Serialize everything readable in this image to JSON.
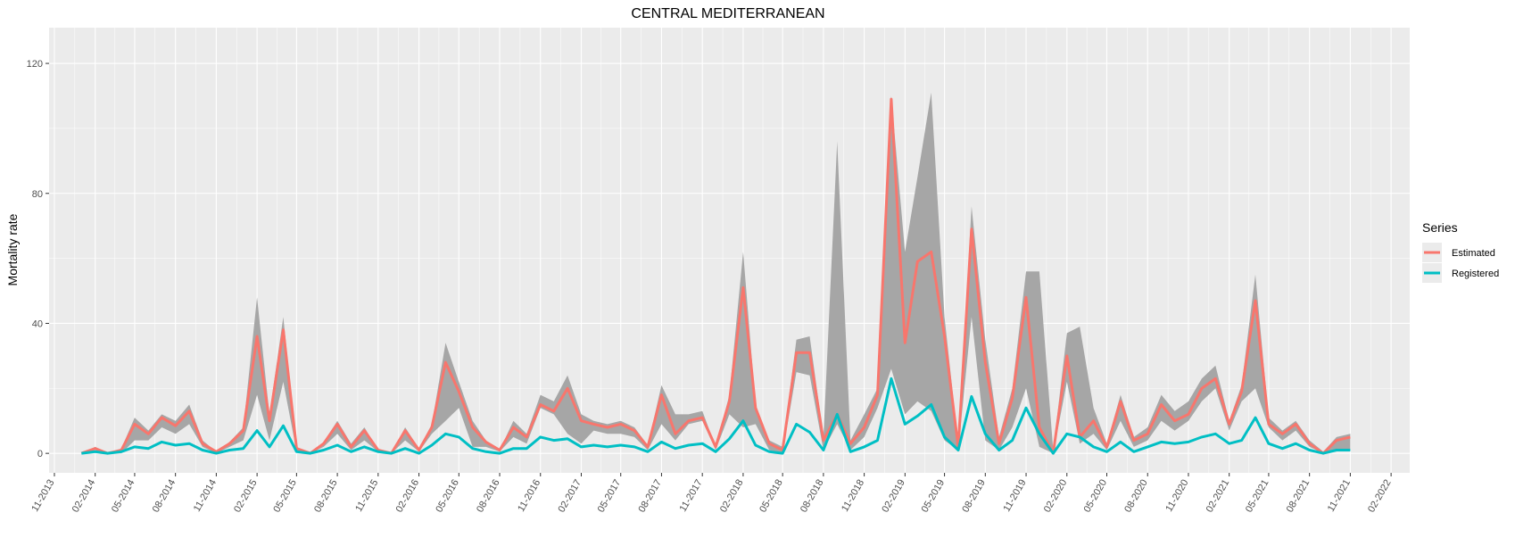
{
  "chart_data": {
    "type": "line",
    "title": "CENTRAL MEDITERRANEAN",
    "xlabel": "",
    "ylabel": "Mortality rate",
    "ylim": [
      -6,
      131
    ],
    "yticks": [
      0,
      40,
      80,
      120
    ],
    "xlim": [
      "2013-10-20",
      "2022-03-15"
    ],
    "xticks": [
      {
        "date": "2013-11-01",
        "label": "11-2013"
      },
      {
        "date": "2014-02-01",
        "label": "02-2014"
      },
      {
        "date": "2014-05-01",
        "label": "05-2014"
      },
      {
        "date": "2014-08-01",
        "label": "08-2014"
      },
      {
        "date": "2014-11-01",
        "label": "11-2014"
      },
      {
        "date": "2015-02-01",
        "label": "02-2015"
      },
      {
        "date": "2015-05-01",
        "label": "05-2015"
      },
      {
        "date": "2015-08-01",
        "label": "08-2015"
      },
      {
        "date": "2015-11-01",
        "label": "11-2015"
      },
      {
        "date": "2016-02-01",
        "label": "02-2016"
      },
      {
        "date": "2016-05-01",
        "label": "05-2016"
      },
      {
        "date": "2016-08-01",
        "label": "08-2016"
      },
      {
        "date": "2016-11-01",
        "label": "11-2016"
      },
      {
        "date": "2017-02-01",
        "label": "02-2017"
      },
      {
        "date": "2017-05-01",
        "label": "05-2017"
      },
      {
        "date": "2017-08-01",
        "label": "08-2017"
      },
      {
        "date": "2017-11-01",
        "label": "11-2017"
      },
      {
        "date": "2018-02-01",
        "label": "02-2018"
      },
      {
        "date": "2018-05-01",
        "label": "05-2018"
      },
      {
        "date": "2018-08-01",
        "label": "08-2018"
      },
      {
        "date": "2018-11-01",
        "label": "11-2018"
      },
      {
        "date": "2019-02-01",
        "label": "02-2019"
      },
      {
        "date": "2019-05-01",
        "label": "05-2019"
      },
      {
        "date": "2019-08-01",
        "label": "08-2019"
      },
      {
        "date": "2019-11-01",
        "label": "11-2019"
      },
      {
        "date": "2020-02-01",
        "label": "02-2020"
      },
      {
        "date": "2020-05-01",
        "label": "05-2020"
      },
      {
        "date": "2020-08-01",
        "label": "08-2020"
      },
      {
        "date": "2020-11-01",
        "label": "11-2020"
      },
      {
        "date": "2021-02-01",
        "label": "02-2021"
      },
      {
        "date": "2021-05-01",
        "label": "05-2021"
      },
      {
        "date": "2021-08-01",
        "label": "08-2021"
      },
      {
        "date": "2021-11-01",
        "label": "11-2021"
      },
      {
        "date": "2022-02-01",
        "label": "02-2022"
      }
    ],
    "grid": true,
    "legend": {
      "title": "Series",
      "position": "right"
    },
    "dates": [
      "2014-01-01",
      "2014-02-01",
      "2014-03-01",
      "2014-04-01",
      "2014-05-01",
      "2014-06-01",
      "2014-07-01",
      "2014-08-01",
      "2014-09-01",
      "2014-10-01",
      "2014-11-01",
      "2014-12-01",
      "2015-01-01",
      "2015-02-01",
      "2015-03-01",
      "2015-04-01",
      "2015-05-01",
      "2015-06-01",
      "2015-07-01",
      "2015-08-01",
      "2015-09-01",
      "2015-10-01",
      "2015-11-01",
      "2015-12-01",
      "2016-01-01",
      "2016-02-01",
      "2016-03-01",
      "2016-04-01",
      "2016-05-01",
      "2016-06-01",
      "2016-07-01",
      "2016-08-01",
      "2016-09-01",
      "2016-10-01",
      "2016-11-01",
      "2016-12-01",
      "2017-01-01",
      "2017-02-01",
      "2017-03-01",
      "2017-04-01",
      "2017-05-01",
      "2017-06-01",
      "2017-07-01",
      "2017-08-01",
      "2017-09-01",
      "2017-10-01",
      "2017-11-01",
      "2017-12-01",
      "2018-01-01",
      "2018-02-01",
      "2018-03-01",
      "2018-04-01",
      "2018-05-01",
      "2018-06-01",
      "2018-07-01",
      "2018-08-01",
      "2018-09-01",
      "2018-10-01",
      "2018-11-01",
      "2018-12-01",
      "2019-01-01",
      "2019-02-01",
      "2019-03-01",
      "2019-04-01",
      "2019-05-01",
      "2019-06-01",
      "2019-07-01",
      "2019-08-01",
      "2019-09-01",
      "2019-10-01",
      "2019-11-01",
      "2019-12-01",
      "2020-01-01",
      "2020-02-01",
      "2020-03-01",
      "2020-04-01",
      "2020-05-01",
      "2020-06-01",
      "2020-07-01",
      "2020-08-01",
      "2020-09-01",
      "2020-10-01",
      "2020-11-01",
      "2020-12-01",
      "2021-01-01",
      "2021-02-01",
      "2021-03-01",
      "2021-04-01",
      "2021-05-01",
      "2021-06-01",
      "2021-07-01",
      "2021-08-01",
      "2021-09-01",
      "2021-10-01",
      "2021-11-01"
    ],
    "series": [
      {
        "name": "Estimated",
        "color": "#F8766D",
        "values": [
          0,
          1.5,
          0,
          1,
          9,
          6,
          11,
          8.5,
          13,
          3,
          0.5,
          3,
          7,
          36,
          10,
          38,
          1.5,
          0,
          3,
          9,
          2,
          7,
          1,
          0,
          7,
          1,
          8,
          28,
          19,
          8,
          3.5,
          1,
          8,
          5,
          15,
          13,
          20,
          10,
          9,
          8,
          9,
          7,
          2,
          18,
          6,
          10,
          11,
          2,
          16,
          51,
          14,
          3,
          1,
          31,
          31,
          4,
          12,
          3,
          8,
          18,
          109,
          34,
          59,
          62,
          36,
          2,
          69,
          28,
          3,
          17,
          48,
          8,
          0,
          30,
          5,
          10,
          2,
          16,
          4,
          6,
          15,
          10,
          12,
          20,
          23,
          9,
          19,
          47,
          9,
          6,
          9,
          3,
          0,
          4,
          5
        ]
      },
      {
        "name": "Registered",
        "color": "#00BFC4",
        "values": [
          0,
          0.5,
          0,
          0.5,
          2,
          1.5,
          3.5,
          2.5,
          3,
          1,
          0,
          1,
          1.5,
          7,
          2,
          8.5,
          0.5,
          0,
          1,
          2.5,
          0.5,
          2,
          0.5,
          0,
          1.5,
          0,
          2.5,
          6,
          5,
          1.5,
          0.5,
          0,
          1.5,
          1.5,
          5,
          4,
          4.5,
          2,
          2.5,
          2,
          2.5,
          2,
          0.5,
          3.5,
          1.5,
          2.5,
          3,
          0.5,
          4.5,
          10,
          2.5,
          0.5,
          0,
          9,
          6.5,
          1,
          12,
          0.5,
          2,
          4,
          23,
          9,
          11.5,
          15,
          5,
          1,
          17.5,
          6,
          1,
          4,
          14,
          6,
          0,
          6,
          5,
          2,
          0.5,
          3.5,
          0.5,
          2,
          3.5,
          3,
          3.5,
          5,
          6,
          3,
          4,
          11,
          3,
          1.5,
          3,
          1,
          0,
          1,
          1
        ]
      }
    ],
    "bands": [
      {
        "fill": "#A6A6A6",
        "lower": [
          0,
          1,
          0,
          0,
          4,
          4,
          8,
          6,
          9,
          2,
          0,
          2,
          4,
          18,
          4,
          22,
          0.5,
          0,
          2,
          6,
          1,
          4,
          0.5,
          0,
          4,
          0.5,
          6,
          10,
          14,
          2,
          2,
          0.5,
          5,
          3,
          14,
          12,
          6,
          3,
          7,
          6,
          6,
          5,
          1,
          9,
          4,
          9,
          10,
          1,
          12,
          8,
          9,
          1,
          0,
          25,
          24,
          1,
          9,
          1,
          5,
          14,
          26,
          12,
          16,
          13,
          4,
          1,
          42,
          4,
          1,
          8,
          20,
          2,
          0,
          22,
          3,
          6,
          1,
          10,
          2,
          4,
          10,
          7,
          10,
          16,
          20,
          7,
          16,
          20,
          8,
          4,
          7,
          2,
          0,
          1,
          1
        ],
        "upper": [
          0,
          2,
          0,
          1.5,
          11,
          7,
          12,
          10,
          15,
          4,
          0.5,
          3.5,
          8,
          48,
          12,
          42,
          2,
          0,
          3.5,
          10,
          3,
          8,
          1,
          0,
          8,
          1.5,
          9,
          34,
          22,
          10,
          4,
          1,
          10,
          6,
          18,
          16,
          24,
          12,
          10,
          9,
          10,
          8,
          2.5,
          21,
          12,
          12,
          13,
          2,
          18,
          62,
          15,
          4,
          2,
          35,
          36,
          5,
          96,
          4,
          12,
          20,
          110,
          62,
          85,
          111,
          42,
          3,
          76,
          35,
          5,
          20,
          56,
          56,
          1,
          37,
          39,
          14,
          3,
          18,
          5,
          8,
          18,
          13,
          16,
          23,
          27,
          10,
          21,
          55,
          11,
          7,
          10,
          4,
          0.5,
          5,
          6
        ]
      }
    ]
  }
}
